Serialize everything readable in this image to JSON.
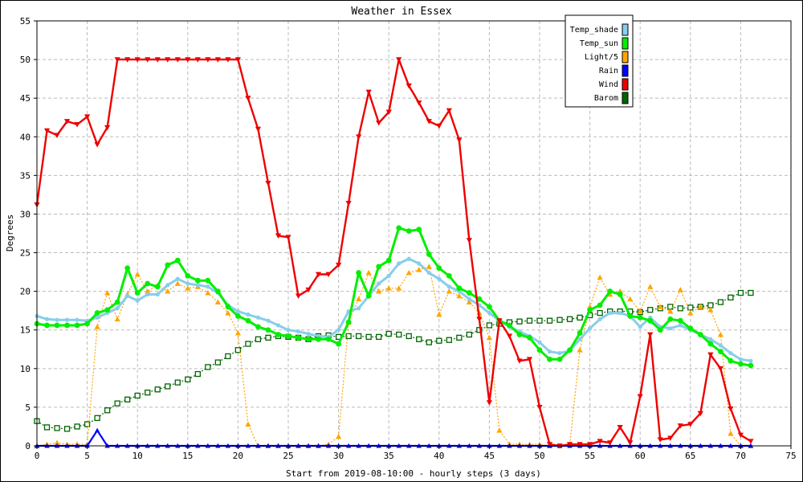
{
  "chart_data": {
    "type": "line",
    "title": "Weather in Essex",
    "xlabel": "Start from 2019-08-10:00 - hourly steps (3 days)",
    "ylabel": "Degrees",
    "xlim": [
      0,
      75
    ],
    "ylim": [
      0,
      55
    ],
    "xticks": [
      "0",
      "5",
      "10",
      "15",
      "20",
      "25",
      "30",
      "35",
      "40",
      "45",
      "50",
      "55",
      "60",
      "65",
      "70",
      "75"
    ],
    "yticks": [
      "0",
      "5",
      "10",
      "15",
      "20",
      "25",
      "30",
      "35",
      "40",
      "45",
      "50",
      "55"
    ],
    "grid": true,
    "legend_position": "top-right",
    "x": [
      0,
      1,
      2,
      3,
      4,
      5,
      6,
      7,
      8,
      9,
      10,
      11,
      12,
      13,
      14,
      15,
      16,
      17,
      18,
      19,
      20,
      21,
      22,
      23,
      24,
      25,
      26,
      27,
      28,
      29,
      30,
      31,
      32,
      33,
      34,
      35,
      36,
      37,
      38,
      39,
      40,
      41,
      42,
      43,
      44,
      45,
      46,
      47,
      48,
      49,
      50,
      51,
      52,
      53,
      54,
      55,
      56,
      57,
      58,
      59,
      60,
      61,
      62,
      63,
      64,
      65,
      66,
      67,
      68,
      69,
      70,
      71
    ],
    "series": [
      {
        "name": "Temp_shade",
        "color": "#87ceeb",
        "marker": "circle",
        "values": [
          16.8,
          16.4,
          16.3,
          16.3,
          16.3,
          16.2,
          16.6,
          17.2,
          17.8,
          19.4,
          18.8,
          19.6,
          19.6,
          20.8,
          21.6,
          21.0,
          20.8,
          20.6,
          19.8,
          18.2,
          17.4,
          17.0,
          16.6,
          16.2,
          15.6,
          15.0,
          14.8,
          14.5,
          14.2,
          14.1,
          15.0,
          17.4,
          17.8,
          19.4,
          21.0,
          22.0,
          23.6,
          24.2,
          23.6,
          22.4,
          21.6,
          20.6,
          20.0,
          19.0,
          18.2,
          17.2,
          16.2,
          15.4,
          14.8,
          14.2,
          13.4,
          12.2,
          12.0,
          12.3,
          13.8,
          15.2,
          16.4,
          17.2,
          17.2,
          16.8,
          15.4,
          16.6,
          15.4,
          15.2,
          15.6,
          15.0,
          14.4,
          13.8,
          13.0,
          12.0,
          11.2,
          11.0
        ]
      },
      {
        "name": "Temp_sun",
        "color": "#00ee00",
        "marker": "circle",
        "values": [
          15.8,
          15.6,
          15.6,
          15.6,
          15.6,
          15.8,
          17.2,
          17.6,
          18.6,
          23.0,
          19.8,
          21.0,
          20.6,
          23.4,
          24.0,
          22.0,
          21.4,
          21.4,
          20.0,
          18.0,
          16.8,
          16.2,
          15.4,
          15.0,
          14.4,
          14.2,
          14.0,
          13.8,
          13.8,
          13.8,
          13.2,
          16.0,
          22.4,
          19.4,
          23.2,
          24.0,
          28.2,
          27.8,
          28.0,
          24.8,
          23.0,
          22.0,
          20.4,
          19.8,
          19.0,
          18.0,
          16.2,
          15.6,
          14.4,
          14.0,
          12.4,
          11.2,
          11.2,
          12.4,
          14.6,
          17.6,
          18.2,
          20.0,
          19.6,
          16.8,
          16.6,
          16.2,
          15.0,
          16.4,
          16.2,
          15.2,
          14.4,
          13.2,
          12.2,
          11.0,
          10.6,
          10.4
        ]
      },
      {
        "name": "Light/5",
        "color": "#ffa500",
        "marker": "triangle-up",
        "values": [
          0.0,
          0.2,
          0.4,
          0.2,
          0.2,
          0.2,
          15.4,
          19.8,
          16.4,
          19.6,
          22.2,
          20.0,
          20.8,
          20.0,
          21.0,
          20.4,
          20.6,
          19.8,
          18.6,
          17.2,
          14.6,
          2.8,
          0.0,
          0.0,
          0.0,
          0.0,
          0.0,
          0.0,
          0.0,
          0.2,
          1.2,
          16.0,
          19.0,
          22.4,
          20.0,
          20.4,
          20.4,
          22.4,
          22.8,
          23.2,
          17.0,
          20.0,
          19.4,
          18.6,
          17.2,
          14.0,
          2.0,
          0.2,
          0.2,
          0.2,
          0.2,
          0.0,
          0.0,
          0.2,
          12.4,
          18.0,
          21.8,
          19.6,
          20.0,
          19.0,
          17.4,
          20.6,
          18.0,
          17.4,
          20.2,
          17.2,
          18.0,
          17.6,
          14.4,
          1.6,
          0.0,
          0.0
        ]
      },
      {
        "name": "Rain",
        "color": "#0000ff",
        "marker": "triangle-up",
        "values": [
          0,
          0,
          0,
          0,
          0,
          0,
          2.0,
          0,
          0,
          0,
          0,
          0,
          0,
          0,
          0,
          0,
          0,
          0,
          0,
          0,
          0,
          0,
          0,
          0,
          0,
          0,
          0,
          0,
          0,
          0,
          0,
          0,
          0,
          0,
          0,
          0,
          0,
          0,
          0,
          0,
          0,
          0,
          0,
          0,
          0,
          0,
          0,
          0,
          0,
          0,
          0,
          0,
          0,
          0,
          0,
          0,
          0,
          0,
          0,
          0,
          0,
          0,
          0,
          0,
          0,
          0,
          0,
          0,
          0,
          0,
          0,
          0
        ]
      },
      {
        "name": "Wind",
        "color": "#ee0000",
        "marker": "triangle-down",
        "values": [
          31.2,
          40.8,
          40.2,
          42.0,
          41.6,
          42.6,
          39.0,
          41.2,
          50.0,
          50.0,
          50.0,
          50.0,
          50.0,
          50.0,
          50.0,
          50.0,
          50.0,
          50.0,
          50.0,
          50.0,
          50.0,
          45.0,
          41.0,
          34.0,
          27.2,
          27.0,
          19.4,
          20.2,
          22.2,
          22.2,
          23.4,
          31.4,
          40.0,
          45.8,
          41.8,
          43.2,
          50.0,
          46.6,
          44.4,
          42.0,
          41.4,
          43.4,
          39.6,
          26.6,
          16.4,
          5.6,
          16.2,
          14.2,
          11.0,
          11.2,
          5.0,
          0.2,
          0.0,
          0.2,
          0.2,
          0.2,
          0.6,
          0.4,
          2.4,
          0.4,
          6.4,
          14.4,
          0.8,
          1.0,
          2.6,
          2.8,
          4.2,
          11.8,
          10.0,
          4.8,
          1.4,
          0.6
        ]
      },
      {
        "name": "Barom",
        "color": "#006400",
        "marker": "square",
        "values": [
          3.2,
          2.4,
          2.3,
          2.2,
          2.5,
          2.8,
          3.6,
          4.6,
          5.5,
          6.0,
          6.5,
          6.9,
          7.3,
          7.7,
          8.2,
          8.6,
          9.3,
          10.2,
          10.8,
          11.6,
          12.4,
          13.2,
          13.8,
          14.0,
          14.2,
          14.1,
          14.0,
          13.8,
          14.2,
          14.3,
          14.1,
          14.2,
          14.2,
          14.1,
          14.1,
          14.5,
          14.4,
          14.2,
          13.8,
          13.4,
          13.6,
          13.7,
          14.0,
          14.4,
          15.0,
          15.6,
          15.8,
          16.0,
          16.1,
          16.2,
          16.2,
          16.2,
          16.3,
          16.4,
          16.6,
          16.9,
          17.2,
          17.4,
          17.4,
          17.4,
          17.3,
          17.6,
          17.8,
          18.0,
          17.8,
          17.9,
          18.0,
          18.2,
          18.6,
          19.2,
          19.8,
          19.8
        ]
      }
    ]
  }
}
